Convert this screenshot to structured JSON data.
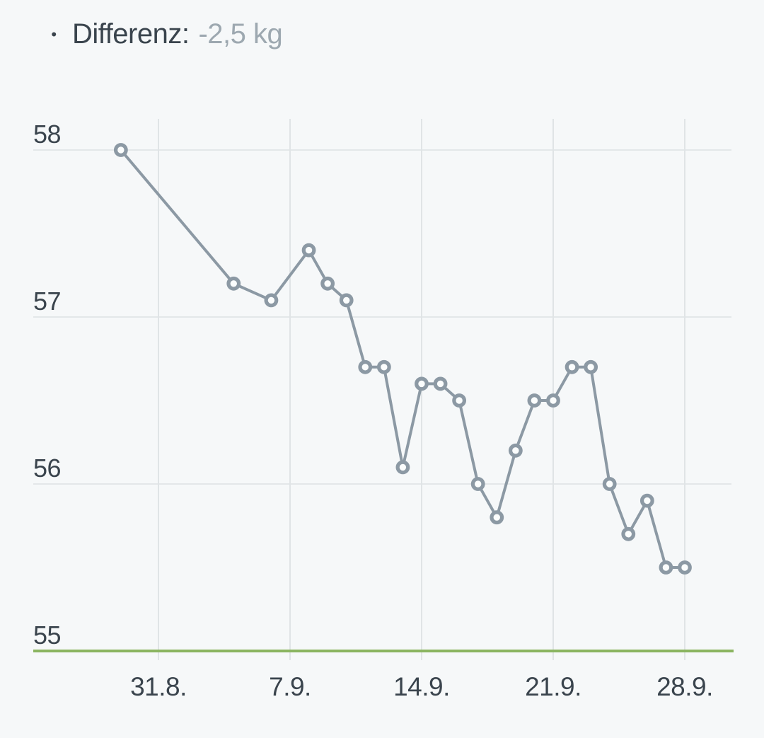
{
  "header": {
    "bullet": "•",
    "label": "Differenz:",
    "value": "-2,5 kg"
  },
  "colors": {
    "background": "#F6F8F9",
    "text_dark": "#3A444D",
    "text_muted": "#9DA8B0",
    "series_line": "#8C99A4",
    "marker_fill": "#FBFDFD",
    "grid_horizontal": "#E3E7E9",
    "grid_vertical": "#E0E4E6",
    "goal_line": "#8BB561"
  },
  "chart_data": {
    "type": "line",
    "title": "",
    "xlabel": "",
    "ylabel": "",
    "unit": "kg",
    "ylim": [
      55,
      58.2
    ],
    "grid": true,
    "legend": "none",
    "marker_style": "open-circle",
    "x_ticks": [
      {
        "label": "31.8.",
        "day": 0
      },
      {
        "label": "7.9.",
        "day": 7
      },
      {
        "label": "14.9.",
        "day": 14
      },
      {
        "label": "21.9.",
        "day": 21
      },
      {
        "label": "28.9.",
        "day": 28
      }
    ],
    "y_ticks": [
      {
        "label": "55",
        "value": 55
      },
      {
        "label": "56",
        "value": 56
      },
      {
        "label": "57",
        "value": 57
      },
      {
        "label": "58",
        "value": 58
      }
    ],
    "goal_line": {
      "value": 55
    },
    "series": [
      {
        "name": "weight",
        "points": [
          {
            "date": "29.8.",
            "day": -2,
            "value": 58.0
          },
          {
            "date": "4.9.",
            "day": 4,
            "value": 57.2
          },
          {
            "date": "6.9.",
            "day": 6,
            "value": 57.1
          },
          {
            "date": "8.9.",
            "day": 8,
            "value": 57.4
          },
          {
            "date": "9.9.",
            "day": 9,
            "value": 57.2
          },
          {
            "date": "10.9.",
            "day": 10,
            "value": 57.1
          },
          {
            "date": "11.9.",
            "day": 11,
            "value": 56.7
          },
          {
            "date": "12.9.",
            "day": 12,
            "value": 56.7
          },
          {
            "date": "13.9.",
            "day": 13,
            "value": 56.1
          },
          {
            "date": "14.9.",
            "day": 14,
            "value": 56.6
          },
          {
            "date": "15.9.",
            "day": 15,
            "value": 56.6
          },
          {
            "date": "16.9.",
            "day": 16,
            "value": 56.5
          },
          {
            "date": "17.9.",
            "day": 17,
            "value": 56.0
          },
          {
            "date": "18.9.",
            "day": 18,
            "value": 55.8
          },
          {
            "date": "19.9.",
            "day": 19,
            "value": 56.2
          },
          {
            "date": "20.9.",
            "day": 20,
            "value": 56.5
          },
          {
            "date": "21.9.",
            "day": 21,
            "value": 56.5
          },
          {
            "date": "22.9.",
            "day": 22,
            "value": 56.7
          },
          {
            "date": "23.9.",
            "day": 23,
            "value": 56.7
          },
          {
            "date": "24.9.",
            "day": 24,
            "value": 56.0
          },
          {
            "date": "25.9.",
            "day": 25,
            "value": 55.7
          },
          {
            "date": "26.9.",
            "day": 26,
            "value": 55.9
          },
          {
            "date": "27.9.",
            "day": 27,
            "value": 55.5
          },
          {
            "date": "28.9.",
            "day": 28,
            "value": 55.5
          }
        ]
      }
    ]
  }
}
